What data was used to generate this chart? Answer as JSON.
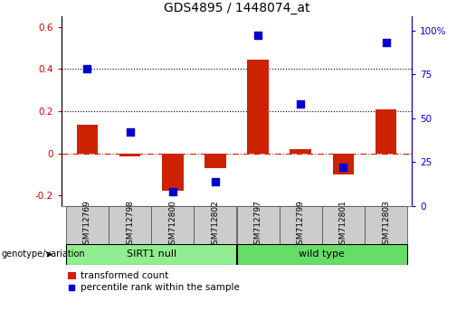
{
  "title": "GDS4895 / 1448074_at",
  "samples": [
    "GSM712769",
    "GSM712798",
    "GSM712800",
    "GSM712802",
    "GSM712797",
    "GSM712799",
    "GSM712801",
    "GSM712803"
  ],
  "transformed_count": [
    0.135,
    -0.015,
    -0.175,
    -0.07,
    0.445,
    0.02,
    -0.1,
    0.21
  ],
  "percentile_rank": [
    78,
    42,
    8,
    14,
    97,
    58,
    22,
    93
  ],
  "groups": [
    {
      "label": "SIRT1 null",
      "indices": [
        0,
        1,
        2,
        3
      ],
      "color": "#90EE90"
    },
    {
      "label": "wild type",
      "indices": [
        4,
        5,
        6,
        7
      ],
      "color": "#66DD66"
    }
  ],
  "group_row_label": "genotype/variation",
  "ylim_left": [
    -0.25,
    0.65
  ],
  "ylim_right": [
    0,
    108.0
  ],
  "yticks_left": [
    -0.2,
    0.0,
    0.2,
    0.4,
    0.6
  ],
  "yticks_right": [
    0,
    25,
    50,
    75,
    100
  ],
  "ytick_labels_left": [
    "-0.2",
    "0",
    "0.2",
    "0.4",
    "0.6"
  ],
  "ytick_labels_right": [
    "0",
    "25",
    "50",
    "75",
    "100%"
  ],
  "left_axis_color": "#CC0000",
  "right_axis_color": "#0000CC",
  "bar_color": "#CC2200",
  "dot_color": "#0000CC",
  "hline_y": 0,
  "dotted_lines": [
    0.2,
    0.4
  ],
  "bar_width": 0.5,
  "dot_size": 30,
  "legend_bar_label": "transformed count",
  "legend_dot_label": "percentile rank within the sample",
  "background_color": "#ffffff",
  "label_bg_color": "#cccccc",
  "title_fontsize": 10,
  "tick_fontsize": 7.5,
  "sample_fontsize": 6.5,
  "group_fontsize": 8,
  "legend_fontsize": 7.5
}
